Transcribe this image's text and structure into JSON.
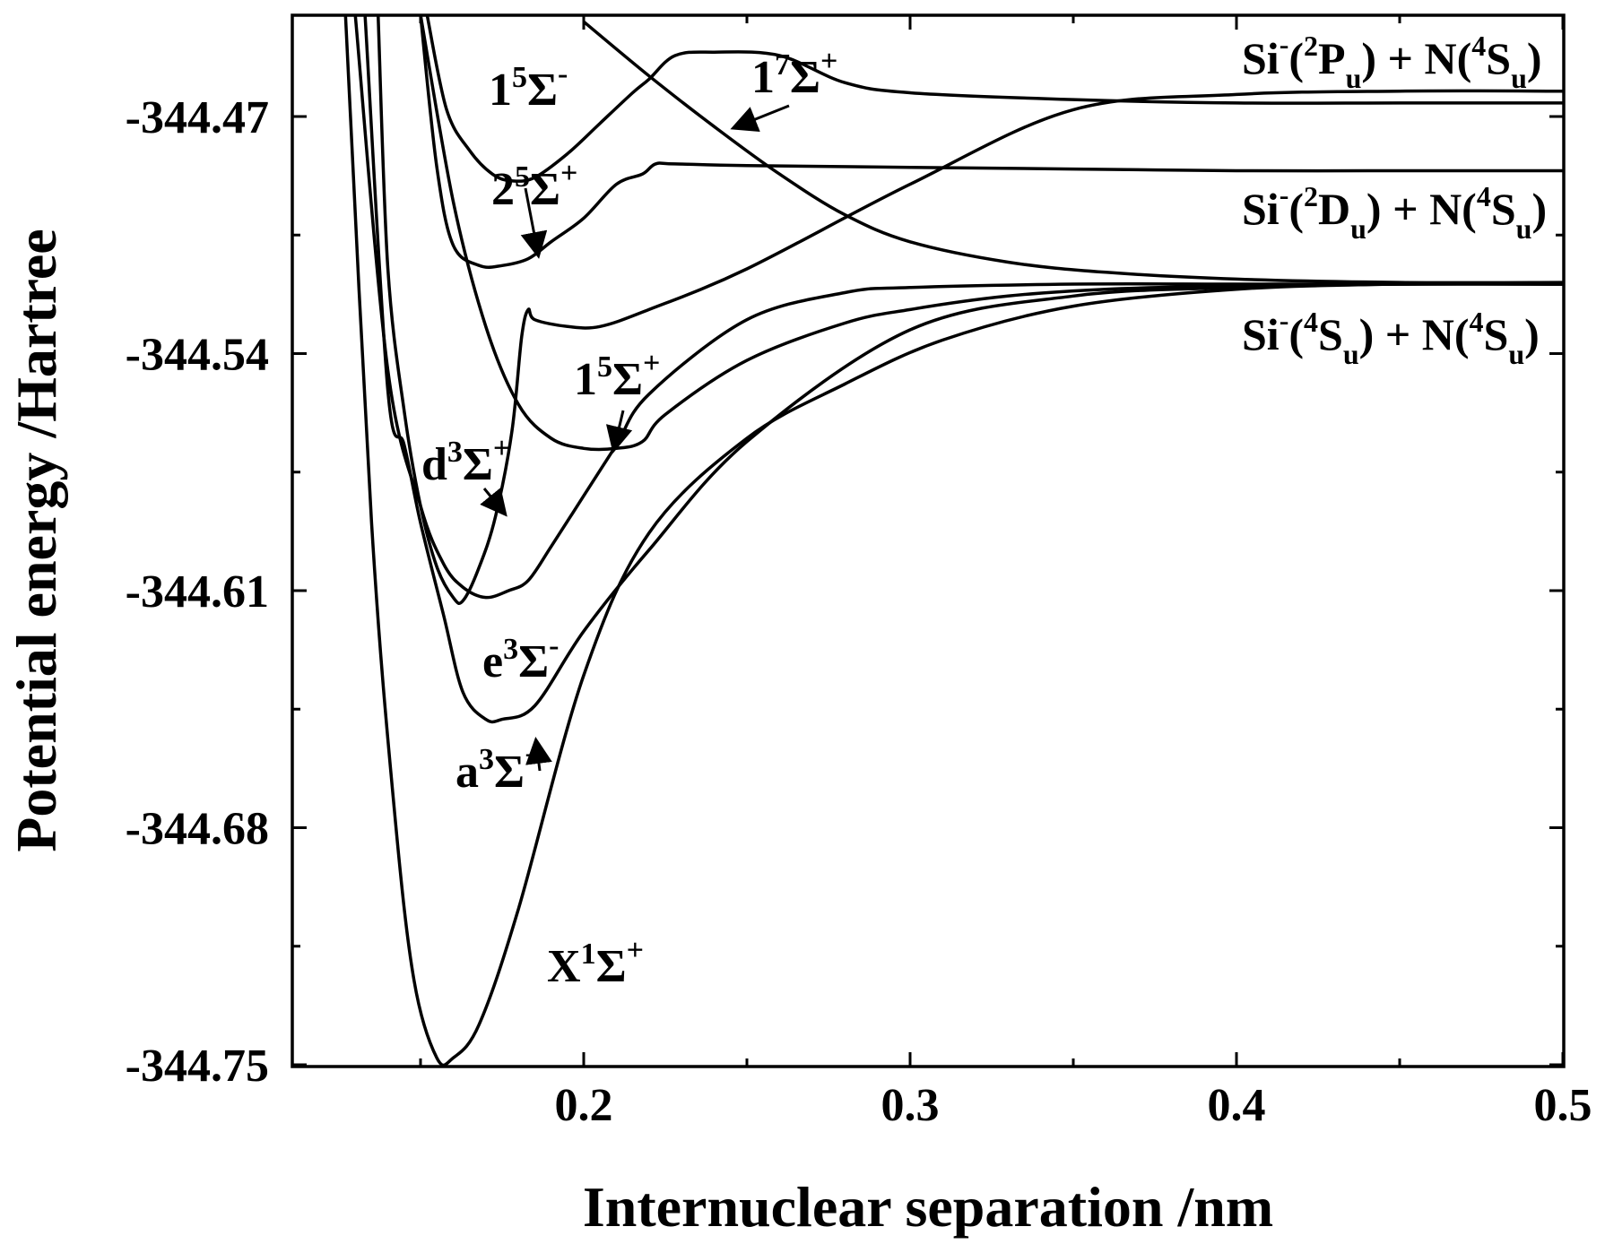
{
  "chart_data": {
    "type": "line",
    "title": "",
    "xlabel": "Internuclear separation /nm",
    "ylabel": "Potential energy /Hartree",
    "xlim": [
      0.11,
      0.5
    ],
    "ylim": [
      -344.75,
      -344.44
    ],
    "xticks": [
      0.2,
      0.3,
      0.4,
      0.5
    ],
    "xtick_labels": [
      "0.2",
      "0.3",
      "0.4",
      "0.5"
    ],
    "yticks": [
      -344.75,
      -344.68,
      -344.61,
      -344.54,
      -344.47
    ],
    "ytick_labels": [
      "-344.75",
      "-344.68",
      "-344.61",
      "-344.54",
      "-344.47"
    ],
    "grid": false,
    "legend": "none",
    "series": [
      {
        "name": "X¹Σ⁺",
        "x": [
          0.127,
          0.135,
          0.142,
          0.148,
          0.155,
          0.16,
          0.168,
          0.18,
          0.2,
          0.22,
          0.25,
          0.28,
          0.31,
          0.35,
          0.4,
          0.45,
          0.5
        ],
        "y": [
          -344.44,
          -344.59,
          -344.675,
          -344.725,
          -344.748,
          -344.748,
          -344.738,
          -344.704,
          -344.635,
          -344.593,
          -344.565,
          -344.549,
          -344.536,
          -344.526,
          -344.521,
          -344.5195,
          -344.5195
        ]
      },
      {
        "name": "a³Σ⁺",
        "x": [
          0.133,
          0.14,
          0.145,
          0.15,
          0.157,
          0.163,
          0.17,
          0.175,
          0.185,
          0.2,
          0.22,
          0.25,
          0.3,
          0.35,
          0.4,
          0.45,
          0.5
        ],
        "y": [
          -344.44,
          -344.551,
          -344.567,
          -344.59,
          -344.617,
          -344.64,
          -344.648,
          -344.648,
          -344.644,
          -344.622,
          -344.598,
          -344.566,
          -344.533,
          -344.523,
          -344.5205,
          -344.5195,
          -344.5195
        ]
      },
      {
        "name": "d³Σ⁺",
        "x": [
          0.137,
          0.14,
          0.145,
          0.15,
          0.155,
          0.16,
          0.163,
          0.168,
          0.173,
          0.178,
          0.181,
          0.183,
          0.185,
          0.195,
          0.205,
          0.22,
          0.25,
          0.3,
          0.35,
          0.4,
          0.45,
          0.5
        ],
        "y": [
          -344.44,
          -344.515,
          -344.557,
          -344.585,
          -344.603,
          -344.612,
          -344.613,
          -344.603,
          -344.588,
          -344.563,
          -344.535,
          -344.527,
          -344.53,
          -344.532,
          -344.532,
          -344.527,
          -344.515,
          -344.49,
          -344.468,
          -344.4635,
          -344.4625,
          -344.4625
        ]
      },
      {
        "name": "e³Σ⁻",
        "x": [
          0.13,
          0.14,
          0.15,
          0.157,
          0.163,
          0.17,
          0.177,
          0.183,
          0.19,
          0.2,
          0.21,
          0.22,
          0.25,
          0.28,
          0.3,
          0.35,
          0.4,
          0.45,
          0.5
        ],
        "y": [
          -344.44,
          -344.545,
          -344.585,
          -344.602,
          -344.609,
          -344.612,
          -344.61,
          -344.607,
          -344.597,
          -344.582,
          -344.567,
          -344.552,
          -344.53,
          -344.522,
          -344.5205,
          -344.5195,
          -344.5195,
          -344.5195,
          -344.5195
        ]
      },
      {
        "name": "1⁵Σ⁺",
        "x": [
          0.15,
          0.16,
          0.17,
          0.18,
          0.19,
          0.2,
          0.21,
          0.218,
          0.225,
          0.25,
          0.28,
          0.3,
          0.33,
          0.36,
          0.4,
          0.45,
          0.5
        ],
        "y": [
          -344.44,
          -344.495,
          -344.532,
          -344.555,
          -344.565,
          -344.568,
          -344.568,
          -344.566,
          -344.558,
          -344.542,
          -344.531,
          -344.527,
          -344.523,
          -344.521,
          -344.52,
          -344.5195,
          -344.5195
        ]
      },
      {
        "name": "2⁵Σ⁺",
        "x": [
          0.15,
          0.155,
          0.16,
          0.168,
          0.175,
          0.183,
          0.19,
          0.2,
          0.21,
          0.218,
          0.222,
          0.228,
          0.25,
          0.3,
          0.35,
          0.4,
          0.45,
          0.5
        ],
        "y": [
          -344.44,
          -344.485,
          -344.508,
          -344.514,
          -344.514,
          -344.512,
          -344.507,
          -344.5,
          -344.49,
          -344.487,
          -344.484,
          -344.484,
          -344.4845,
          -344.485,
          -344.4855,
          -344.486,
          -344.486,
          -344.486
        ]
      },
      {
        "name": "1⁵Σ⁻",
        "x": [
          0.152,
          0.158,
          0.165,
          0.172,
          0.178,
          0.185,
          0.195,
          0.205,
          0.215,
          0.22,
          0.228,
          0.24,
          0.26,
          0.28,
          0.3,
          0.35,
          0.4,
          0.45,
          0.5
        ],
        "y": [
          -344.44,
          -344.468,
          -344.48,
          -344.487,
          -344.489,
          -344.488,
          -344.481,
          -344.472,
          -344.463,
          -344.459,
          -344.452,
          -344.451,
          -344.452,
          -344.46,
          -344.463,
          -344.465,
          -344.466,
          -344.466,
          -344.466
        ]
      },
      {
        "name": "1⁷Σ⁺",
        "x": [
          0.2,
          0.22,
          0.24,
          0.26,
          0.28,
          0.3,
          0.33,
          0.36,
          0.4,
          0.45,
          0.5
        ],
        "y": [
          -344.442,
          -344.458,
          -344.473,
          -344.487,
          -344.499,
          -344.507,
          -344.513,
          -344.516,
          -344.518,
          -344.519,
          -344.519
        ]
      }
    ],
    "labels": [
      {
        "text": "X¹Σ⁺",
        "state": "X",
        "sup1": "1",
        "sup2": "+"
      },
      {
        "text": "a³Σ⁺",
        "state": "a",
        "sup1": "3",
        "sup2": "+"
      },
      {
        "text": "d³Σ⁺",
        "state": "d",
        "sup1": "3",
        "sup2": "+"
      },
      {
        "text": "e³Σ⁻",
        "state": "e",
        "sup1": "3",
        "sup2": "-"
      },
      {
        "text": "1⁵Σ⁺",
        "state": "1",
        "sup1": "5",
        "sup2": "+"
      },
      {
        "text": "2⁵Σ⁺",
        "state": "2",
        "sup1": "5",
        "sup2": "+"
      },
      {
        "text": "1⁵Σ⁻",
        "state": "1",
        "sup1": "5",
        "sup2": "-"
      },
      {
        "text": "1⁷Σ⁺",
        "state": "1",
        "sup1": "7",
        "sup2": "+"
      }
    ],
    "asymptotes": [
      {
        "text": "Si⁻(²Pᵤ) + N(⁴Sᵤ)",
        "si_state": "P",
        "si_mult": "2",
        "n_state": "S",
        "n_mult": "4"
      },
      {
        "text": "Si⁻(²Dᵤ) + N(⁴Sᵤ)",
        "si_state": "D",
        "si_mult": "2",
        "n_state": "S",
        "n_mult": "4"
      },
      {
        "text": "Si⁻(⁴Sᵤ) + N(⁴Sᵤ)",
        "si_state": "S",
        "si_mult": "4",
        "n_state": "S",
        "n_mult": "4"
      }
    ]
  }
}
